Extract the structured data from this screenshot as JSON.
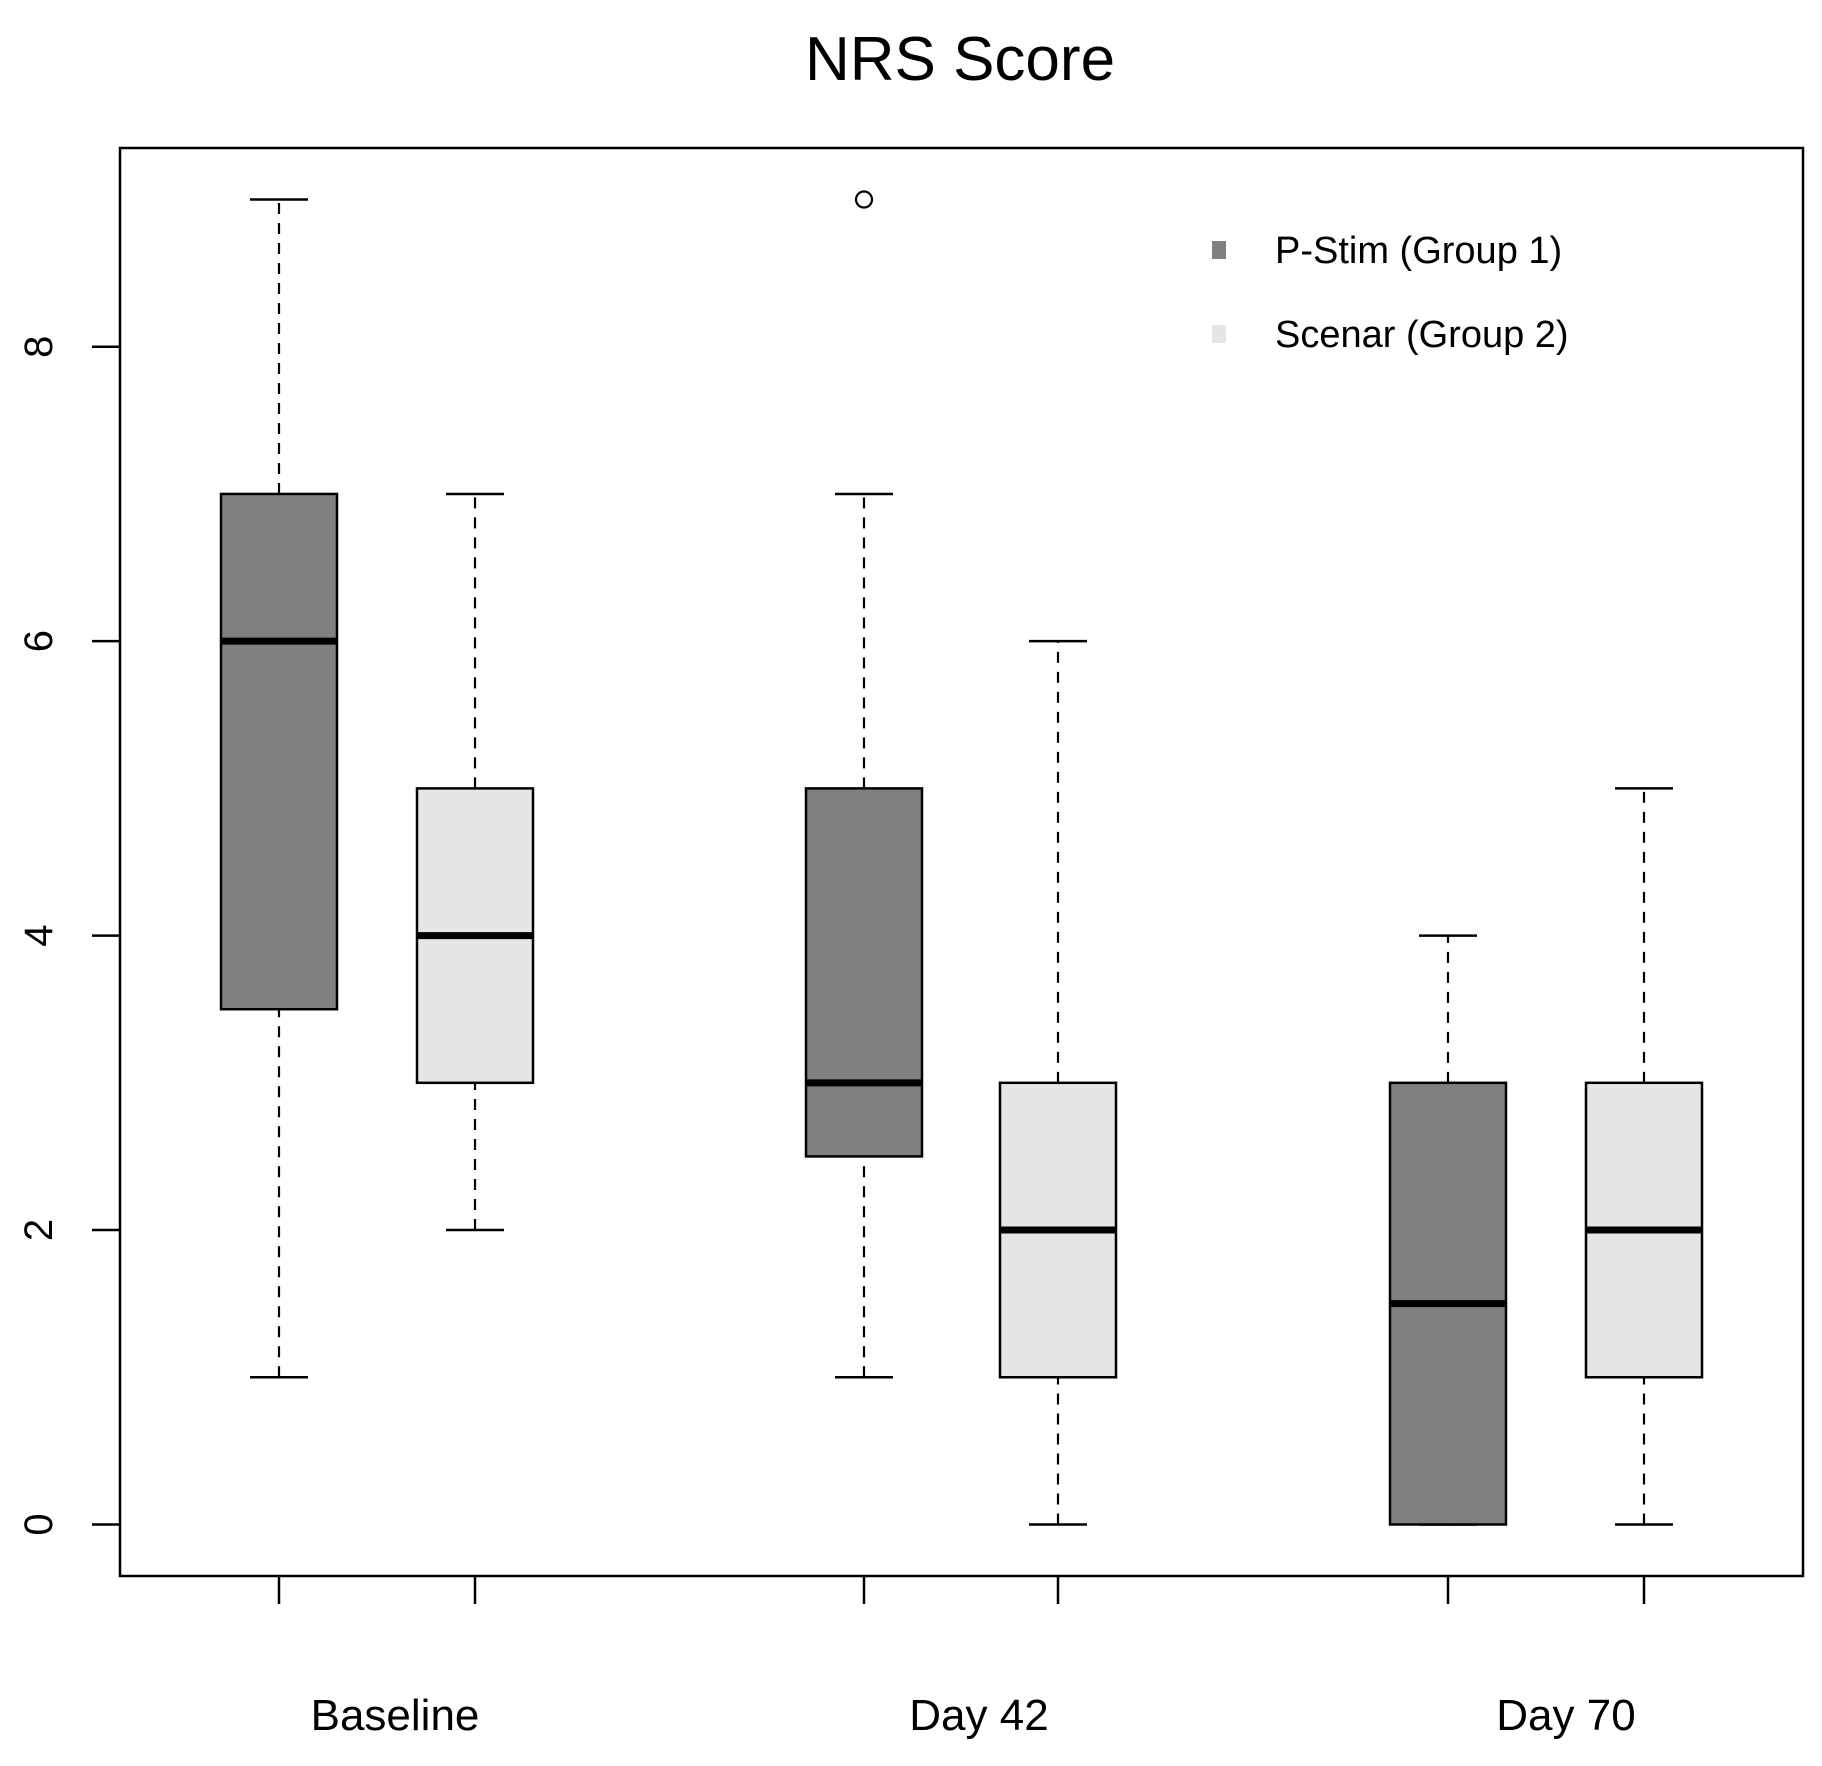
{
  "chart_data": {
    "type": "boxplot",
    "title": "NRS Score",
    "xlabel": "",
    "ylabel": "",
    "ylim": [
      -0.35,
      9.35
    ],
    "yticks": [
      0,
      2,
      4,
      6,
      8
    ],
    "categories": [
      "Baseline",
      "Day 42",
      "Day 70"
    ],
    "legend": {
      "placement": "top-right",
      "entries": [
        {
          "name": "P-Stim (Group 1)",
          "color": "#808080"
        },
        {
          "name": "Scenar (Group 2)",
          "color": "#e6e6e6"
        }
      ]
    },
    "boxes": [
      {
        "category": "Baseline",
        "group": "P-Stim (Group 1)",
        "color": "#808080",
        "whisker_low": 1,
        "q1": 3.5,
        "median": 6,
        "q3": 7,
        "whisker_high": 9,
        "outliers": []
      },
      {
        "category": "Baseline",
        "group": "Scenar (Group 2)",
        "color": "#e6e6e6",
        "whisker_low": 2,
        "q1": 3,
        "median": 4,
        "q3": 5,
        "whisker_high": 7,
        "outliers": []
      },
      {
        "category": "Day 42",
        "group": "P-Stim (Group 1)",
        "color": "#808080",
        "whisker_low": 1,
        "q1": 2.5,
        "median": 3,
        "q3": 5,
        "whisker_high": 7,
        "outliers": [
          9
        ]
      },
      {
        "category": "Day 42",
        "group": "Scenar (Group 2)",
        "color": "#e6e6e6",
        "whisker_low": 0,
        "q1": 1,
        "median": 2,
        "q3": 3,
        "whisker_high": 6,
        "outliers": []
      },
      {
        "category": "Day 70",
        "group": "P-Stim (Group 1)",
        "color": "#808080",
        "whisker_low": 0,
        "q1": 0,
        "median": 1.5,
        "q3": 3,
        "whisker_high": 4,
        "outliers": []
      },
      {
        "category": "Day 70",
        "group": "Scenar (Group 2)",
        "color": "#e6e6e6",
        "whisker_low": 0,
        "q1": 1,
        "median": 2,
        "q3": 3,
        "whisker_high": 5,
        "outliers": []
      }
    ]
  }
}
